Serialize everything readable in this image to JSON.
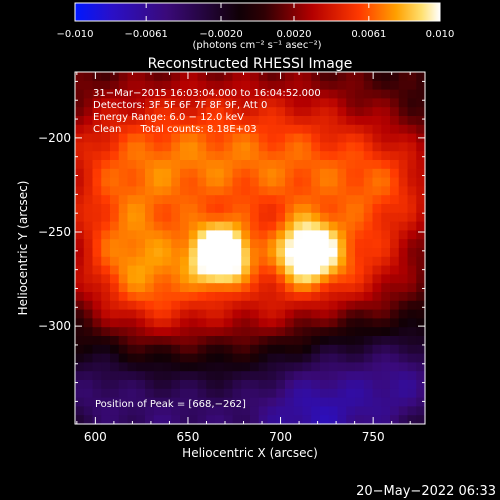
{
  "colorbar": {
    "min": -0.01,
    "max": 0.01,
    "ticks": [
      {
        "value": -0.01,
        "label": "−0.010"
      },
      {
        "value": -0.0061,
        "label": "−0.0061"
      },
      {
        "value": -0.002,
        "label": "−0.0020"
      },
      {
        "value": 0.002,
        "label": "0.0020"
      },
      {
        "value": 0.0061,
        "label": "0.0061"
      },
      {
        "value": 0.01,
        "label": "0.010"
      }
    ],
    "unit_label": "(photons cm⁻² s⁻¹ asec⁻²)",
    "colormap_stops": [
      {
        "pos": 0.0,
        "color": "#0018ff"
      },
      {
        "pos": 0.1,
        "color": "#2a10c8"
      },
      {
        "pos": 0.25,
        "color": "#3a0a7a"
      },
      {
        "pos": 0.45,
        "color": "#100006"
      },
      {
        "pos": 0.52,
        "color": "#300004"
      },
      {
        "pos": 0.65,
        "color": "#b40000"
      },
      {
        "pos": 0.78,
        "color": "#ff3a00"
      },
      {
        "pos": 0.88,
        "color": "#ffa000"
      },
      {
        "pos": 0.95,
        "color": "#ffe070"
      },
      {
        "pos": 1.0,
        "color": "#ffffff"
      }
    ]
  },
  "title": "Reconstructed RHESSI Image",
  "info_lines": [
    "31−Mar−2015 16:03:04.000 to 16:04:52.000",
    "Detectors: 3F 5F 6F 7F 8F 9F, Att 0",
    "Energy Range: 6.0 − 12.0 keV",
    "Clean      Total counts: 8.18E+03"
  ],
  "peak_text": "Position of Peak = [668,−262]",
  "footer_timestamp": "20−May−2022 06:33",
  "chart_data": {
    "type": "heatmap",
    "title": "Reconstructed RHESSI Image",
    "xlabel": "Heliocentric X (arcsec)",
    "ylabel": "Heliocentric Y (arcsec)",
    "xlim": [
      589,
      778
    ],
    "ylim": [
      -352,
      -165
    ],
    "x_ticks": [
      {
        "value": 600,
        "label": "600"
      },
      {
        "value": 650,
        "label": "650"
      },
      {
        "value": 700,
        "label": "700"
      },
      {
        "value": 750,
        "label": "750"
      }
    ],
    "y_ticks": [
      {
        "value": -200,
        "label": "−200"
      },
      {
        "value": -250,
        "label": "−250"
      },
      {
        "value": -300,
        "label": "−300"
      }
    ],
    "value_range": [
      -0.01,
      0.01
    ],
    "peak": {
      "x": 668,
      "y": -262
    },
    "sources": [
      {
        "x": 668,
        "y": -262,
        "peak": 0.01,
        "sigma": 11
      },
      {
        "x": 715,
        "y": -261,
        "peak": 0.0085,
        "sigma": 12
      }
    ],
    "background_emission": [
      {
        "x": 610,
        "y": -215,
        "peak": 0.0045,
        "sigma": 28
      },
      {
        "x": 660,
        "y": -210,
        "peak": 0.005,
        "sigma": 30
      },
      {
        "x": 715,
        "y": -215,
        "peak": 0.005,
        "sigma": 30
      },
      {
        "x": 760,
        "y": -225,
        "peak": 0.004,
        "sigma": 22
      },
      {
        "x": 640,
        "y": -285,
        "peak": 0.0045,
        "sigma": 25
      },
      {
        "x": 700,
        "y": -290,
        "peak": 0.004,
        "sigma": 25
      },
      {
        "x": 615,
        "y": -265,
        "peak": 0.004,
        "sigma": 22
      },
      {
        "x": 745,
        "y": -270,
        "peak": 0.0035,
        "sigma": 20
      }
    ],
    "negative_regions": [
      {
        "x": 720,
        "y": -345,
        "peak": -0.007,
        "sigma": 30
      },
      {
        "x": 640,
        "y": -350,
        "peak": -0.0045,
        "sigma": 30
      },
      {
        "x": 770,
        "y": -330,
        "peak": -0.004,
        "sigma": 18
      },
      {
        "x": 595,
        "y": -335,
        "peak": -0.003,
        "sigma": 18
      }
    ]
  }
}
